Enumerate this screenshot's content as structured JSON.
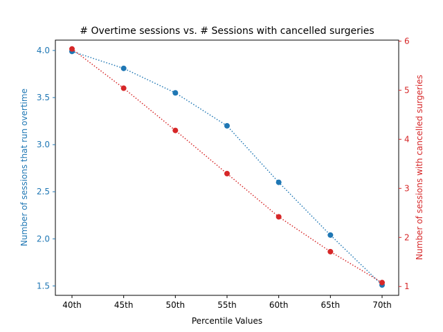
{
  "chart_data": {
    "type": "line",
    "title": "# Overtime sessions vs. # Sessions with cancelled surgeries",
    "xlabel": "Percentile Values",
    "categories": [
      "40th",
      "45th",
      "50th",
      "55th",
      "60th",
      "65th",
      "70th"
    ],
    "left_axis": {
      "label": "Number of sessions that run overtime",
      "ylim": [
        1.4,
        4.11
      ],
      "ticks": [
        1.5,
        2.0,
        2.5,
        3.0,
        3.5,
        4.0
      ],
      "tick_labels": [
        "1.5",
        "2.0",
        "2.5",
        "3.0",
        "3.5",
        "4.0"
      ],
      "color": "#1f77b4"
    },
    "right_axis": {
      "label": "Number of sessions with cancelled surgeries",
      "ylim": [
        0.82,
        6.02
      ],
      "ticks": [
        1,
        2,
        3,
        4,
        5,
        6
      ],
      "tick_labels": [
        "1",
        "2",
        "3",
        "4",
        "5",
        "6"
      ],
      "color": "#d62728"
    },
    "series": [
      {
        "axis": "left",
        "color": "#1f77b4",
        "line_style": "dotted",
        "marker": "circle",
        "values": [
          3.99,
          3.81,
          3.55,
          3.2,
          2.6,
          2.04,
          1.51
        ]
      },
      {
        "axis": "right",
        "color": "#d62728",
        "line_style": "dotted",
        "marker": "circle",
        "values": [
          5.84,
          5.04,
          4.18,
          3.3,
          2.42,
          1.71,
          1.08
        ]
      }
    ],
    "grid": false,
    "legend": "none"
  }
}
